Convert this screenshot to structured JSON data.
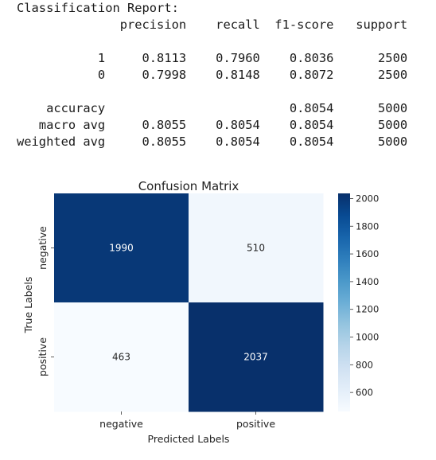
{
  "report": {
    "lines": [
      "Classification Report:",
      "              precision    recall  f1-score   support",
      "",
      "           1     0.8113    0.7960    0.8036      2500",
      "           0     0.7998    0.8148    0.8072      2500",
      "",
      "    accuracy                         0.8054      5000",
      "   macro avg     0.8055    0.8054    0.8054      5000",
      "weighted avg     0.8055    0.8054    0.8054      5000"
    ]
  },
  "chart_data": {
    "type": "heatmap",
    "title": "Confusion Matrix",
    "xlabel": "Predicted Labels",
    "ylabel": "True Labels",
    "x_categories": [
      "negative",
      "positive"
    ],
    "y_categories": [
      "negative",
      "positive"
    ],
    "values": [
      [
        1990,
        510
      ],
      [
        463,
        2037
      ]
    ],
    "colormap": "Blues",
    "colorbar": {
      "ticks": [
        600,
        800,
        1000,
        1200,
        1400,
        1600,
        1800,
        2000
      ],
      "range": [
        463,
        2037
      ]
    },
    "colors": {
      "low": "#f7fbff",
      "high": "#08306b"
    }
  }
}
